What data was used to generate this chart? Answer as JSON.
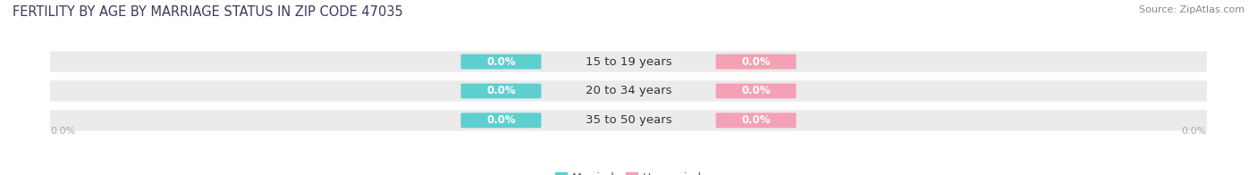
{
  "title": "FERTILITY BY AGE BY MARRIAGE STATUS IN ZIP CODE 47035",
  "source": "Source: ZipAtlas.com",
  "categories": [
    "15 to 19 years",
    "20 to 34 years",
    "35 to 50 years"
  ],
  "married_values": [
    0.0,
    0.0,
    0.0
  ],
  "unmarried_values": [
    0.0,
    0.0,
    0.0
  ],
  "married_color": "#5ecfcf",
  "unmarried_color": "#f4a0b5",
  "bar_bg_color": "#ebebeb",
  "bar_height": 0.68,
  "left_label": "0.0%",
  "right_label": "0.0%",
  "title_fontsize": 10.5,
  "source_fontsize": 8,
  "axis_label_fontsize": 8,
  "legend_fontsize": 9,
  "category_fontsize": 9.5,
  "value_fontsize": 8.5,
  "background_color": "#ffffff",
  "title_color": "#3a3a5c",
  "source_color": "#888888",
  "axis_label_color": "#aaaaaa",
  "category_color": "#333333"
}
